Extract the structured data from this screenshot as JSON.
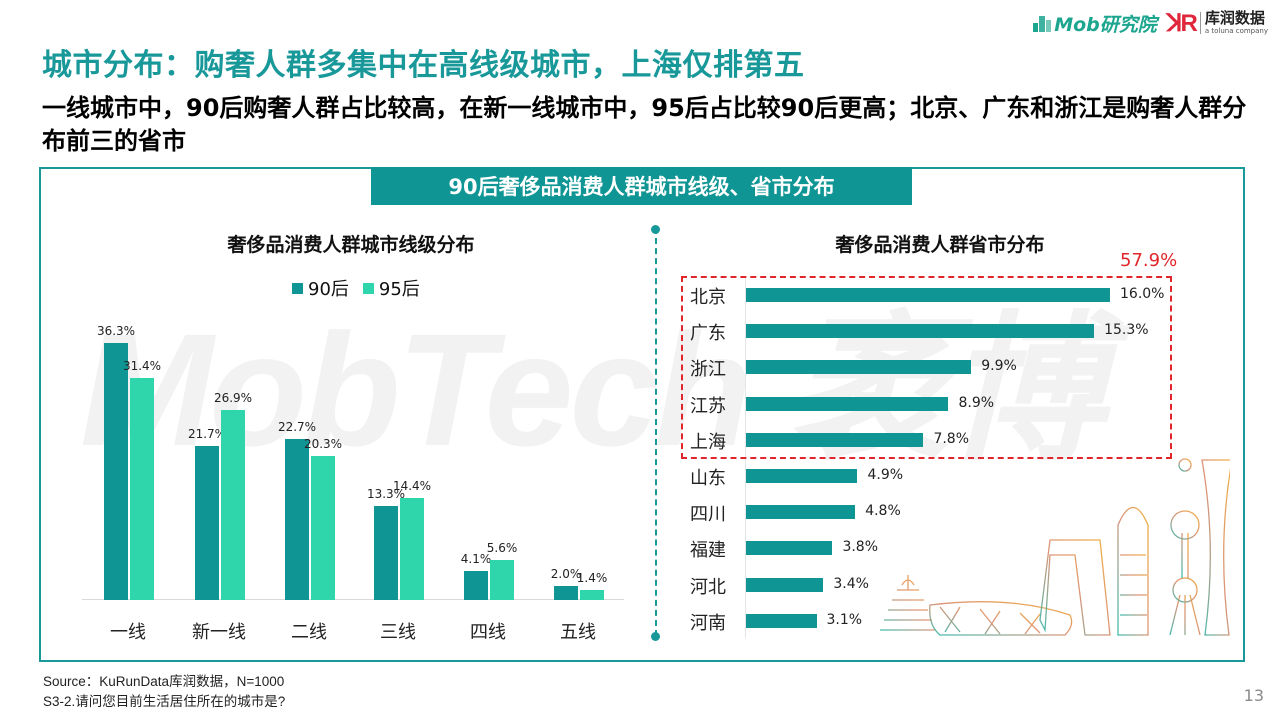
{
  "logos": {
    "mob": "Mob研究院",
    "kurun_cn": "库润数据",
    "kurun_en": "a toluna company",
    "kurun_mark": "K"
  },
  "title": "城市分布：购奢人群多集中在高线级城市，上海仅排第五",
  "subtitle": "一线城市中，90后购奢人群占比较高，在新一线城市中，95后占比较90后更高；北京、广东和浙江是购奢人群分布前三的省市",
  "frame_header": "90后奢侈品消费人群城市线级、省市分布",
  "watermark": "MobTech 袤博",
  "colors": {
    "accent": "#19989a",
    "series_90": "#0f9594",
    "series_95": "#2fd6ac",
    "highlight": "#e0262b"
  },
  "chart_data": [
    {
      "type": "bar",
      "title": "奢侈品消费人群城市线级分布",
      "categories": [
        "一线",
        "新一线",
        "二线",
        "三线",
        "四线",
        "五线"
      ],
      "series": [
        {
          "name": "90后",
          "color": "#0f9594",
          "values": [
            36.3,
            21.7,
            22.7,
            13.3,
            4.1,
            2.0
          ]
        },
        {
          "name": "95后",
          "color": "#2fd6ac",
          "values": [
            31.4,
            26.9,
            20.3,
            14.4,
            5.6,
            1.4
          ]
        }
      ],
      "labels": {
        "90后": [
          "36.3%",
          "21.7%",
          "22.7%",
          "13.3%",
          "4.1%",
          "2.0%"
        ],
        "95后": [
          "31.4%",
          "26.9%",
          "20.3%",
          "14.4%",
          "5.6%",
          "1.4%"
        ]
      },
      "xlabel": "",
      "ylabel": "",
      "unit": "%",
      "legend_position": "top",
      "grid": false
    },
    {
      "type": "bar",
      "orientation": "horizontal",
      "title": "奢侈品消费人群省市分布",
      "categories": [
        "北京",
        "广东",
        "浙江",
        "江苏",
        "上海",
        "山东",
        "四川",
        "福建",
        "河北",
        "河南"
      ],
      "values": [
        16.0,
        15.3,
        9.9,
        8.9,
        7.8,
        4.9,
        4.8,
        3.8,
        3.4,
        3.1
      ],
      "value_labels": [
        "16.0%",
        "15.3%",
        "9.9%",
        "8.9%",
        "7.8%",
        "4.9%",
        "4.8%",
        "3.8%",
        "3.4%",
        "3.1%"
      ],
      "annotation": {
        "text": "57.9%",
        "covers": [
          "北京",
          "广东",
          "浙江",
          "江苏",
          "上海"
        ],
        "style": "red dashed box"
      },
      "xlabel": "",
      "ylabel": "",
      "unit": "%",
      "grid": false
    }
  ],
  "left_chart": {
    "title": "奢侈品消费人群城市线级分布",
    "legend": [
      {
        "label": "90后"
      },
      {
        "label": "95后"
      }
    ],
    "groups": [
      {
        "cat": "一线",
        "a": "36.3%",
        "b": "31.4%"
      },
      {
        "cat": "新一线",
        "a": "21.7%",
        "b": "26.9%"
      },
      {
        "cat": "二线",
        "a": "22.7%",
        "b": "20.3%"
      },
      {
        "cat": "三线",
        "a": "13.3%",
        "b": "14.4%"
      },
      {
        "cat": "四线",
        "a": "4.1%",
        "b": "5.6%"
      },
      {
        "cat": "五线",
        "a": "2.0%",
        "b": "1.4%"
      }
    ]
  },
  "right_chart": {
    "title": "奢侈品消费人群省市分布",
    "highlight_total": "57.9%",
    "rows": [
      {
        "label": "北京",
        "value": "16.0%"
      },
      {
        "label": "广东",
        "value": "15.3%"
      },
      {
        "label": "浙江",
        "value": "9.9%"
      },
      {
        "label": "江苏",
        "value": "8.9%"
      },
      {
        "label": "上海",
        "value": "7.8%"
      },
      {
        "label": "山东",
        "value": "4.9%"
      },
      {
        "label": "四川",
        "value": "4.8%"
      },
      {
        "label": "福建",
        "value": "3.8%"
      },
      {
        "label": "河北",
        "value": "3.4%"
      },
      {
        "label": "河南",
        "value": "3.1%"
      }
    ]
  },
  "footer": {
    "source": "Source：KuRunData库润数据，N=1000",
    "question": "S3-2.请问您目前生活居住所在的城市是?",
    "page_number": "13"
  }
}
